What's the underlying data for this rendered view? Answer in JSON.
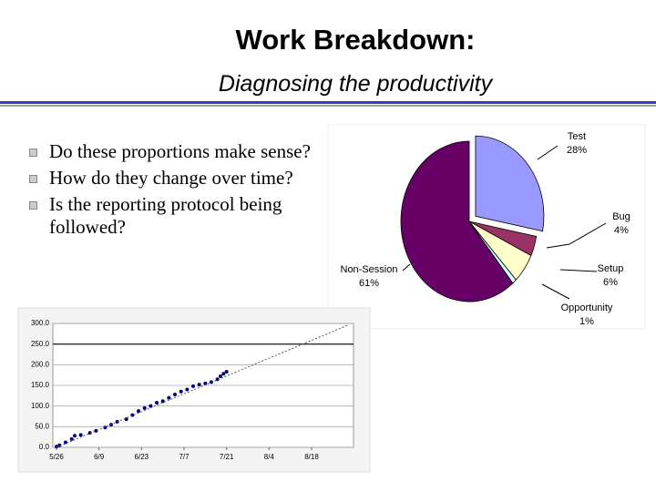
{
  "header": {
    "title": "Work Breakdown:",
    "subtitle": "Diagnosing the productivity"
  },
  "bullets": [
    "Do these proportions make sense?",
    "How do they change over time?",
    "Is the reporting protocol being followed?"
  ],
  "chart_data": [
    {
      "type": "pie",
      "categories": [
        "Test",
        "Bug",
        "Setup",
        "Opportunity",
        "Non-Session"
      ],
      "values": [
        28,
        4,
        6,
        1,
        61
      ],
      "value_labels": [
        "28%",
        "4%",
        "6%",
        "1%",
        "61%"
      ],
      "colors": [
        "#9999ff",
        "#993366",
        "#ffffcc",
        "#ccffff",
        "#660066"
      ],
      "exploded": [
        0
      ]
    },
    {
      "type": "scatter",
      "xlim": [
        -1.2,
        97.8
      ],
      "ylim": [
        0,
        300
      ],
      "xticks": [
        {
          "value": 0,
          "label": "5/26"
        },
        {
          "value": 14,
          "label": "6/9"
        },
        {
          "value": 28,
          "label": "6/23"
        },
        {
          "value": 42,
          "label": "7/7"
        },
        {
          "value": 56,
          "label": "7/21"
        },
        {
          "value": 70,
          "label": "8/4"
        },
        {
          "value": 84,
          "label": "8/18"
        }
      ],
      "yticks": [
        {
          "value": 0,
          "label": "0.0"
        },
        {
          "value": 50,
          "label": "50.0"
        },
        {
          "value": 100,
          "label": "100.0"
        },
        {
          "value": 150,
          "label": "150.0"
        },
        {
          "value": 200,
          "label": "200.0"
        },
        {
          "value": 250,
          "label": "250.0"
        },
        {
          "value": 300,
          "label": "300.0"
        }
      ],
      "grid": true,
      "reference_line": 250,
      "series": [
        {
          "color": "#000080",
          "marker": "point",
          "x": [
            0,
            1,
            3,
            5,
            6,
            8,
            11,
            13,
            16,
            18,
            20,
            23,
            25,
            27,
            29,
            31,
            33,
            35,
            37,
            39,
            41,
            43,
            45,
            47,
            49,
            51,
            53,
            54,
            55,
            56
          ],
          "values": [
            2,
            5,
            12,
            20,
            28,
            30,
            35,
            40,
            48,
            55,
            62,
            68,
            78,
            88,
            95,
            100,
            108,
            112,
            120,
            128,
            135,
            140,
            148,
            152,
            155,
            158,
            165,
            172,
            178,
            183
          ]
        },
        {
          "color": "#555555",
          "marker": "dotted-line",
          "x": [
            0,
            96
          ],
          "values": [
            0,
            296
          ]
        }
      ]
    }
  ]
}
